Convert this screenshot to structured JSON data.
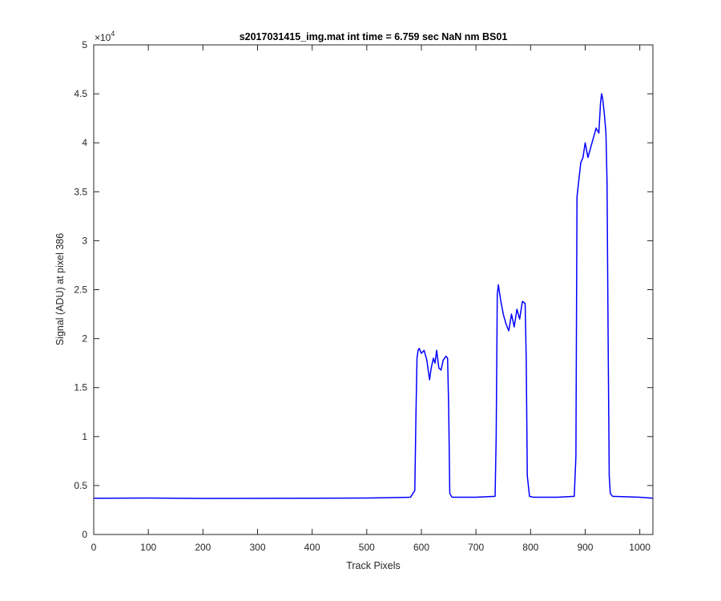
{
  "chart_data": {
    "type": "line",
    "title": "s2017031415_img.mat int time = 6.759 sec  NaN nm BS01",
    "xlabel": "Track Pixels",
    "ylabel": "Signal (ADU) at pixel 386",
    "xlim": [
      0,
      1024
    ],
    "ylim": [
      0,
      50000
    ],
    "x_ticks": [
      0,
      100,
      200,
      300,
      400,
      500,
      600,
      700,
      800,
      900,
      1000
    ],
    "y_ticks": [
      0,
      5000,
      10000,
      15000,
      20000,
      25000,
      30000,
      35000,
      40000,
      45000,
      50000
    ],
    "x_tick_labels": [
      "0",
      "100",
      "200",
      "300",
      "400",
      "500",
      "600",
      "700",
      "800",
      "900",
      "1000"
    ],
    "y_tick_labels": [
      "0",
      "0.5",
      "1",
      "1.5",
      "2",
      "2.5",
      "3",
      "3.5",
      "4",
      "4.5",
      "5"
    ],
    "y_exponent_base": "×10",
    "y_exponent_power": "4",
    "grid": false,
    "line_color": "#0000ff",
    "series": [
      {
        "x": [
          0,
          100,
          200,
          300,
          400,
          500,
          580,
          588,
          590,
          592,
          594,
          596,
          600,
          605,
          610,
          615,
          618,
          622,
          625,
          628,
          632,
          636,
          640,
          645,
          648,
          650,
          652,
          656,
          700,
          735,
          737,
          739,
          741,
          745,
          750,
          755,
          760,
          765,
          770,
          775,
          780,
          785,
          790,
          792,
          794,
          798,
          805,
          850,
          880,
          883,
          885,
          888,
          892,
          896,
          900,
          905,
          910,
          915,
          920,
          925,
          928,
          930,
          932,
          935,
          938,
          940,
          942,
          944,
          946,
          950,
          1000,
          1024
        ],
        "y": [
          3700,
          3720,
          3680,
          3690,
          3700,
          3720,
          3800,
          4500,
          12000,
          18000,
          18800,
          19000,
          18500,
          18800,
          17800,
          15800,
          17000,
          18000,
          17500,
          18800,
          17000,
          16800,
          17800,
          18200,
          18000,
          13000,
          4200,
          3800,
          3800,
          3900,
          10000,
          24500,
          25500,
          24000,
          22500,
          21500,
          20800,
          22500,
          21200,
          23000,
          22000,
          23800,
          23600,
          18000,
          6000,
          3900,
          3800,
          3800,
          3900,
          8000,
          34500,
          36000,
          38000,
          38500,
          40000,
          38500,
          39500,
          40500,
          41500,
          41000,
          44000,
          45000,
          44500,
          43000,
          41000,
          36000,
          20000,
          6000,
          4200,
          3900,
          3800,
          3700
        ]
      }
    ]
  }
}
